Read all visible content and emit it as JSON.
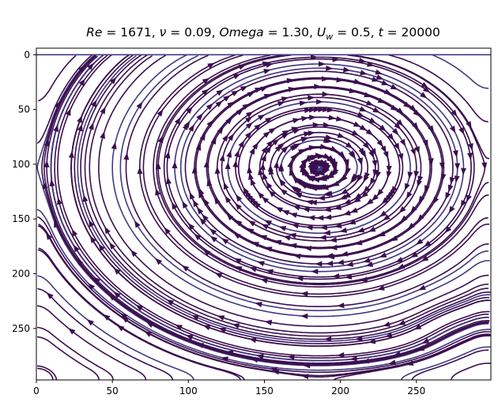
{
  "chart_data": {
    "type": "streamplot",
    "title_parts": [
      {
        "t": "Re",
        "style": "italic"
      },
      {
        "t": " = 1671, ",
        "style": "normal"
      },
      {
        "t": "ν",
        "style": "italic"
      },
      {
        "t": " = 0.09, ",
        "style": "normal"
      },
      {
        "t": "Omega",
        "style": "italic"
      },
      {
        "t": " = 1.30, ",
        "style": "normal"
      },
      {
        "t": "U",
        "style": "italic"
      },
      {
        "t": "w",
        "style": "sub"
      },
      {
        "t": " = 0.5, ",
        "style": "normal"
      },
      {
        "t": "t",
        "style": "italic"
      },
      {
        "t": " = 20000",
        "style": "normal"
      }
    ],
    "x_ticks": [
      0,
      50,
      100,
      150,
      200,
      250
    ],
    "y_ticks": [
      0,
      50,
      100,
      150,
      200,
      250
    ],
    "xlim": [
      0,
      299
    ],
    "ylim": [
      297,
      -6
    ],
    "y_inverted": true,
    "grid": false,
    "colors": {
      "stream_dark": "#3b0f4f",
      "stream_mid": "#433a83",
      "axes": "#000000"
    },
    "features": {
      "primary_vortex": {
        "center": [
          186,
          103
        ],
        "rotation": "clockwise"
      },
      "secondary_vortex": {
        "center": [
          272,
          244
        ],
        "rotation": "counterclockwise"
      },
      "lid_velocity_direction": "+x",
      "lid_y": 0
    }
  }
}
